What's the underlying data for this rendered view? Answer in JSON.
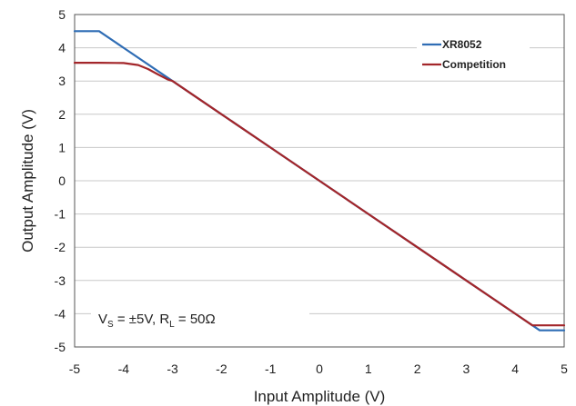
{
  "chart_data": {
    "type": "line",
    "xlabel": "Input Amplitude (V)",
    "ylabel": "Output Amplitude (V)",
    "xlim": [
      -5,
      5
    ],
    "ylim": [
      -5,
      5
    ],
    "x_ticks": [
      "-5",
      "-4",
      "-3",
      "-2",
      "-1",
      "0",
      "1",
      "2",
      "3",
      "4",
      "5"
    ],
    "y_ticks": [
      "5",
      "4",
      "3",
      "2",
      "1",
      "0",
      "-1",
      "-2",
      "-3",
      "-4",
      "-5"
    ],
    "grid": "horizontal",
    "legend_position": "top-right",
    "series": [
      {
        "name": "XR8052",
        "color": "#2f6db5",
        "points": [
          [
            -5,
            4.5
          ],
          [
            -4.5,
            4.5
          ],
          [
            -4,
            4.0
          ],
          [
            -3,
            3.0
          ],
          [
            -2,
            2.0
          ],
          [
            -1,
            1.0
          ],
          [
            0,
            0.0
          ],
          [
            1,
            -1.0
          ],
          [
            2,
            -2.0
          ],
          [
            3,
            -3.0
          ],
          [
            4,
            -4.0
          ],
          [
            4.5,
            -4.5
          ],
          [
            5,
            -4.5
          ]
        ]
      },
      {
        "name": "Competition",
        "color": "#a3262a",
        "points": [
          [
            -5,
            3.55
          ],
          [
            -4.5,
            3.55
          ],
          [
            -4.0,
            3.54
          ],
          [
            -3.7,
            3.48
          ],
          [
            -3.5,
            3.36
          ],
          [
            -3.3,
            3.2
          ],
          [
            -3.1,
            3.05
          ],
          [
            -3,
            3.0
          ],
          [
            -2,
            2.0
          ],
          [
            -1,
            1.0
          ],
          [
            0,
            0.0
          ],
          [
            1,
            -1.0
          ],
          [
            2,
            -2.0
          ],
          [
            3,
            -3.0
          ],
          [
            4,
            -4.0
          ],
          [
            4.35,
            -4.35
          ],
          [
            5,
            -4.35
          ]
        ]
      }
    ],
    "annotation": {
      "vs_sym": "V",
      "vs_sub": "S",
      "vs_val": " = ±5V, ",
      "rl_sym": "R",
      "rl_sub": "L",
      "rl_val": " = 50Ω"
    }
  }
}
